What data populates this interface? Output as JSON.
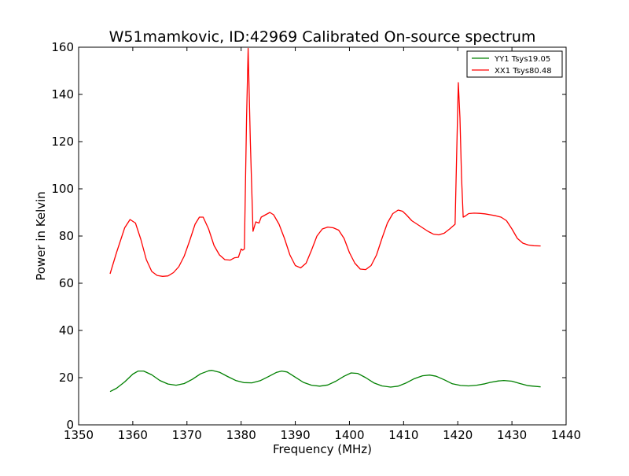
{
  "chart_data": {
    "type": "line",
    "title": "W51mamkovic, ID:42969 Calibrated On-source spectrum",
    "xlabel": "Frequency (MHz)",
    "ylabel": "Power in Kelvin",
    "xlim": [
      1350,
      1440
    ],
    "ylim": [
      0,
      160
    ],
    "xticks": [
      1350,
      1360,
      1370,
      1380,
      1390,
      1400,
      1410,
      1420,
      1430,
      1440
    ],
    "yticks": [
      0,
      20,
      40,
      60,
      80,
      100,
      120,
      140,
      160
    ],
    "grid": false,
    "legend_position": "top-right",
    "series": [
      {
        "name": "YY1 Tsys19.05",
        "color": "#008000",
        "x": [
          1355.8,
          1357,
          1358.5,
          1360,
          1361,
          1362,
          1363.5,
          1365,
          1366.5,
          1368,
          1369.5,
          1371,
          1372.5,
          1374,
          1374.6,
          1376,
          1377.5,
          1379,
          1380.5,
          1382,
          1383.5,
          1385,
          1386.5,
          1387.5,
          1388.5,
          1390,
          1391.5,
          1393,
          1394.5,
          1396,
          1397.5,
          1399,
          1400.3,
          1401.5,
          1403,
          1404.5,
          1406,
          1407.6,
          1409,
          1410.5,
          1412,
          1413.5,
          1414.8,
          1416,
          1417.5,
          1419,
          1420.5,
          1422,
          1423.5,
          1425,
          1426,
          1427.5,
          1428.5,
          1430,
          1431.5,
          1433,
          1435.3
        ],
        "values": [
          14.1,
          15.5,
          18.2,
          21.5,
          22.8,
          22.8,
          21.2,
          18.8,
          17.3,
          16.8,
          17.5,
          19.3,
          21.6,
          22.9,
          23.1,
          22.3,
          20.5,
          18.8,
          17.9,
          17.8,
          18.7,
          20.4,
          22.2,
          22.8,
          22.4,
          20.2,
          18.0,
          16.8,
          16.4,
          16.9,
          18.5,
          20.6,
          22.0,
          21.8,
          20.0,
          17.8,
          16.5,
          16.0,
          16.4,
          17.8,
          19.6,
          20.8,
          21.1,
          20.6,
          19.1,
          17.4,
          16.7,
          16.5,
          16.8,
          17.4,
          18.0,
          18.6,
          18.8,
          18.5,
          17.5,
          16.6,
          16.1
        ]
      },
      {
        "name": "XX1 Tsys80.48",
        "color": "#ff0000",
        "x": [
          1355.8,
          1357,
          1358.5,
          1359.5,
          1360.5,
          1361.5,
          1362.5,
          1363.5,
          1364.5,
          1365.5,
          1366.5,
          1367.5,
          1368.5,
          1369.5,
          1370.5,
          1371.5,
          1372.3,
          1373,
          1374,
          1375,
          1376,
          1377,
          1378,
          1378.8,
          1379.5,
          1380,
          1380.3,
          1380.6,
          1381,
          1381.3,
          1381.7,
          1382.2,
          1382.7,
          1383.3,
          1383.7,
          1384.5,
          1385.3,
          1386,
          1387,
          1388,
          1389,
          1390,
          1391,
          1392,
          1393,
          1394,
          1395,
          1396,
          1397,
          1398,
          1399,
          1400,
          1401,
          1402,
          1403,
          1404,
          1405,
          1406,
          1407,
          1408,
          1409,
          1409.8,
          1410.5,
          1411.5,
          1412.5,
          1413.5,
          1414.5,
          1415.5,
          1416.5,
          1417.5,
          1418.5,
          1419.5,
          1420.1,
          1420.4,
          1420.7,
          1421,
          1421.4,
          1422,
          1423,
          1424,
          1425,
          1426,
          1427,
          1428,
          1429,
          1430,
          1431,
          1432,
          1433,
          1434,
          1435.3
        ],
        "values": [
          64.0,
          73.0,
          83.5,
          87.0,
          85.5,
          78.5,
          70.0,
          65.0,
          63.3,
          62.9,
          63.1,
          64.5,
          67.0,
          71.5,
          78.0,
          85.0,
          88.0,
          88.0,
          83.0,
          76.0,
          72.0,
          70.0,
          69.8,
          70.8,
          71.0,
          74.5,
          74.0,
          74.5,
          130.0,
          159.5,
          120.0,
          82.0,
          86.0,
          85.5,
          88.0,
          89.0,
          90.0,
          89.0,
          85.0,
          79.0,
          72.0,
          67.5,
          66.5,
          68.5,
          74.0,
          80.0,
          83.0,
          83.8,
          83.5,
          82.5,
          79.0,
          73.0,
          68.5,
          66.0,
          65.8,
          67.5,
          72.0,
          79.0,
          85.5,
          89.5,
          91.0,
          90.5,
          89.0,
          86.5,
          85.0,
          83.5,
          82.0,
          80.8,
          80.5,
          81.2,
          83.0,
          85.0,
          145.0,
          130.0,
          105.0,
          88.0,
          88.5,
          89.5,
          89.7,
          89.6,
          89.4,
          89.0,
          88.6,
          88.0,
          86.5,
          83.0,
          79.0,
          77.0,
          76.2,
          75.9,
          75.8
        ]
      }
    ]
  }
}
